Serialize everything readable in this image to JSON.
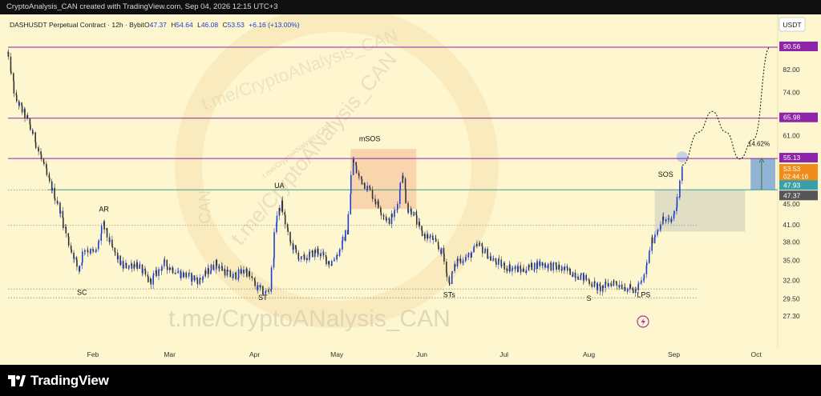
{
  "header": {
    "caption": "CryptoAnalysis_CAN created with TradingView.com, Sep 04, 2026 12:15 UTC+3"
  },
  "legend": {
    "symbol": "DASHUSDT Perpetual Contract · 12h · Bybit",
    "open_label": "O",
    "open": "47.37",
    "high_label": "H",
    "high": "54.64",
    "low_label": "L",
    "low": "46.08",
    "close_label": "C",
    "close": "53.53",
    "change": "+6.16 (+13.00%)"
  },
  "currency_button": "USDT",
  "watermark": {
    "text_bottom": "t.me/CryptoANalysis_CAN",
    "text_diag_main": "t.me/CryptoANalysis_CAN",
    "text_diag_small": "t.me/CryptoANalysis_CAN",
    "text_diag_upper": "t.me/CryptoANalysis_CAN",
    "text_vertical": "CAN"
  },
  "colors": {
    "background": "#fdf6cf",
    "candle_up": "#1f3fd0",
    "candle_down": "#333333",
    "resistance_line": "#8e24aa",
    "support_line": "#26a69a",
    "tag_purple": "#8e24aa",
    "tag_orange": "#ef8c1a",
    "tag_teal": "#3aa0a8",
    "tag_dark": "#555555",
    "projection_box": "#6f9cd8",
    "msos_box": "#f5b993",
    "sos_box": "#cfcfbf"
  },
  "chart_data": {
    "type": "candlestick",
    "x_axis": {
      "tick_labels": [
        "Feb",
        "Mar",
        "Apr",
        "May",
        "Jun",
        "Jul",
        "Aug",
        "Sep",
        "Oct"
      ]
    },
    "y_axis": {
      "scale": "log",
      "range": [
        26,
        93
      ],
      "tick_labels": [
        "82.00",
        "74.00",
        "61.00",
        "45.00",
        "41.00",
        "38.00",
        "35.00",
        "32.00",
        "29.50",
        "27.30"
      ]
    },
    "price_tags": [
      {
        "value": "90.56",
        "color": "purple"
      },
      {
        "value": "65.98",
        "color": "purple"
      },
      {
        "value": "55.13",
        "color": "purple"
      },
      {
        "value": "53.53",
        "extra": "02:44:16",
        "color": "orange"
      },
      {
        "value": "47.93",
        "color": "teal"
      },
      {
        "value": "47.37",
        "color": "dark"
      }
    ],
    "horizontal_levels": [
      {
        "value": 90.56,
        "style": "solid",
        "color": "purple"
      },
      {
        "value": 65.98,
        "style": "solid",
        "color": "purple"
      },
      {
        "value": 55.13,
        "style": "solid",
        "color": "purple"
      },
      {
        "value": 47.93,
        "style": "solid",
        "color": "teal"
      },
      {
        "value": 47.9,
        "style": "dotted"
      },
      {
        "value": 40.9,
        "style": "dotted"
      },
      {
        "value": 30.8,
        "style": "dotted"
      },
      {
        "value": 29.6,
        "style": "dotted"
      }
    ],
    "annotations": [
      "SC",
      "AR",
      "ST",
      "UA",
      "mSOS",
      "STs",
      "S",
      "LPS",
      "SOS",
      "14.62%"
    ],
    "path": [
      {
        "date": "2026-01-01",
        "price": 88
      },
      {
        "date": "2026-01-04",
        "price": 72
      },
      {
        "date": "2026-01-08",
        "price": 66
      },
      {
        "date": "2026-01-12",
        "price": 58
      },
      {
        "date": "2026-01-16",
        "price": 50
      },
      {
        "date": "2026-01-20",
        "price": 44
      },
      {
        "date": "2026-01-24",
        "price": 37
      },
      {
        "date": "2026-01-27",
        "price": 33.5
      },
      {
        "date": "2026-01-29",
        "price": 37
      },
      {
        "date": "2026-02-02",
        "price": 36
      },
      {
        "date": "2026-02-05",
        "price": 41
      },
      {
        "date": "2026-02-08",
        "price": 37
      },
      {
        "date": "2026-02-12",
        "price": 34
      },
      {
        "date": "2026-02-17",
        "price": 34.5
      },
      {
        "date": "2026-02-22",
        "price": 31.8
      },
      {
        "date": "2026-02-27",
        "price": 34.5
      },
      {
        "date": "2026-03-05",
        "price": 33
      },
      {
        "date": "2026-03-12",
        "price": 32
      },
      {
        "date": "2026-03-18",
        "price": 34.5
      },
      {
        "date": "2026-03-24",
        "price": 32.5
      },
      {
        "date": "2026-03-29",
        "price": 33.5
      },
      {
        "date": "2026-04-02",
        "price": 31
      },
      {
        "date": "2026-04-05",
        "price": 30.2
      },
      {
        "date": "2026-04-07",
        "price": 31
      },
      {
        "date": "2026-04-09",
        "price": 42
      },
      {
        "date": "2026-04-11",
        "price": 45
      },
      {
        "date": "2026-04-14",
        "price": 38
      },
      {
        "date": "2026-04-18",
        "price": 35
      },
      {
        "date": "2026-04-24",
        "price": 36.5
      },
      {
        "date": "2026-04-29",
        "price": 34.5
      },
      {
        "date": "2026-05-02",
        "price": 36.5
      },
      {
        "date": "2026-05-05",
        "price": 40
      },
      {
        "date": "2026-05-07",
        "price": 55
      },
      {
        "date": "2026-05-09",
        "price": 51
      },
      {
        "date": "2026-05-13",
        "price": 48
      },
      {
        "date": "2026-05-17",
        "price": 44
      },
      {
        "date": "2026-05-20",
        "price": 41.5
      },
      {
        "date": "2026-05-23",
        "price": 44
      },
      {
        "date": "2026-05-25",
        "price": 52
      },
      {
        "date": "2026-05-27",
        "price": 44
      },
      {
        "date": "2026-05-29",
        "price": 43.5
      },
      {
        "date": "2026-06-01",
        "price": 39.5
      },
      {
        "date": "2026-06-05",
        "price": 38.5
      },
      {
        "date": "2026-06-09",
        "price": 36
      },
      {
        "date": "2026-06-11",
        "price": 31.5
      },
      {
        "date": "2026-06-14",
        "price": 35
      },
      {
        "date": "2026-06-18",
        "price": 35.5
      },
      {
        "date": "2026-06-22",
        "price": 37.5
      },
      {
        "date": "2026-06-27",
        "price": 35
      },
      {
        "date": "2026-07-02",
        "price": 34
      },
      {
        "date": "2026-07-08",
        "price": 33.5
      },
      {
        "date": "2026-07-14",
        "price": 34.5
      },
      {
        "date": "2026-07-20",
        "price": 34
      },
      {
        "date": "2026-07-27",
        "price": 33
      },
      {
        "date": "2026-08-01",
        "price": 32
      },
      {
        "date": "2026-08-05",
        "price": 30.8
      },
      {
        "date": "2026-08-10",
        "price": 31.8
      },
      {
        "date": "2026-08-15",
        "price": 31
      },
      {
        "date": "2026-08-18",
        "price": 30.5
      },
      {
        "date": "2026-08-21",
        "price": 32
      },
      {
        "date": "2026-08-24",
        "price": 38
      },
      {
        "date": "2026-08-26",
        "price": 40
      },
      {
        "date": "2026-08-28",
        "price": 42
      },
      {
        "date": "2026-08-31",
        "price": 41.5
      },
      {
        "date": "2026-09-02",
        "price": 44.5
      },
      {
        "date": "2026-09-03",
        "price": 47.37
      },
      {
        "date": "2026-09-04",
        "price": 53.53
      }
    ],
    "projection": [
      {
        "date": "2026-09-04",
        "price": 53.53
      },
      {
        "date": "2026-09-10",
        "price": 62
      },
      {
        "date": "2026-09-15",
        "price": 68
      },
      {
        "date": "2026-09-20",
        "price": 62
      },
      {
        "date": "2026-09-25",
        "price": 55
      },
      {
        "date": "2026-09-30",
        "price": 60
      },
      {
        "date": "2026-10-06",
        "price": 90.56
      }
    ]
  }
}
